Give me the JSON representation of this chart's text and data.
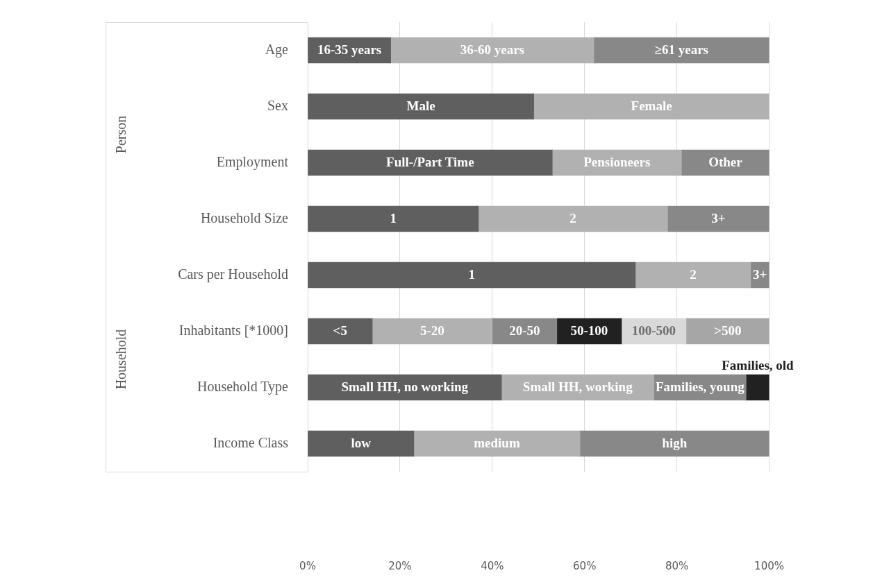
{
  "chart_data": {
    "type": "bar",
    "orientation": "horizontal",
    "stacked": true,
    "grid": "x",
    "legend": false,
    "categories": [
      "Age",
      "Sex",
      "Employment",
      "Household Size",
      "Cars per Household",
      "Inhabitants [*1000]",
      "Household Type",
      "Income Class"
    ],
    "xlim": [
      0,
      100
    ],
    "xticks": [
      {
        "value": 0,
        "label": "0%"
      },
      {
        "value": 20,
        "label": "20%"
      },
      {
        "value": 40,
        "label": "40%"
      },
      {
        "value": 60,
        "label": "60%"
      },
      {
        "value": 80,
        "label": "80%"
      },
      {
        "value": 100,
        "label": "100%"
      }
    ],
    "series": [
      {
        "name": "16-35 years",
        "color": "#5f5f5f",
        "values": [
          18,
          null,
          null,
          null,
          null,
          null,
          null,
          null
        ]
      },
      {
        "name": "36-60 years",
        "color": "#b1b1b1",
        "values": [
          44,
          null,
          null,
          null,
          null,
          null,
          null,
          null
        ]
      },
      {
        "name": "≥61 years",
        "color": "#888888",
        "values": [
          38,
          null,
          null,
          null,
          null,
          null,
          null,
          null
        ]
      },
      {
        "name": "Male",
        "color": "#5f5f5f",
        "values": [
          null,
          49,
          null,
          null,
          null,
          null,
          null,
          null
        ]
      },
      {
        "name": "Female",
        "color": "#b1b1b1",
        "values": [
          null,
          51,
          null,
          null,
          null,
          null,
          null,
          null
        ]
      },
      {
        "name": "Full-/Part Time",
        "color": "#5f5f5f",
        "values": [
          null,
          null,
          53,
          null,
          null,
          null,
          null,
          null
        ]
      },
      {
        "name": "Pensioneers",
        "color": "#b1b1b1",
        "values": [
          null,
          null,
          28,
          null,
          null,
          null,
          null,
          null
        ]
      },
      {
        "name": "Other",
        "color": "#888888",
        "values": [
          null,
          null,
          19,
          null,
          null,
          null,
          null,
          null
        ]
      },
      {
        "name": "1",
        "color": "#5f5f5f",
        "values": [
          null,
          null,
          null,
          37,
          null,
          null,
          null,
          null
        ]
      },
      {
        "name": "2",
        "color": "#b1b1b1",
        "values": [
          null,
          null,
          null,
          41,
          null,
          null,
          null,
          null
        ]
      },
      {
        "name": "3+",
        "color": "#888888",
        "values": [
          null,
          null,
          null,
          22,
          null,
          null,
          null,
          null
        ]
      },
      {
        "name": "1",
        "color": "#5f5f5f",
        "values": [
          null,
          null,
          null,
          null,
          71,
          null,
          null,
          null
        ]
      },
      {
        "name": "2",
        "color": "#b1b1b1",
        "values": [
          null,
          null,
          null,
          null,
          25,
          null,
          null,
          null
        ]
      },
      {
        "name": "3+",
        "color": "#888888",
        "values": [
          null,
          null,
          null,
          null,
          4,
          null,
          null,
          null
        ]
      },
      {
        "name": "<5",
        "color": "#5f5f5f",
        "values": [
          null,
          null,
          null,
          null,
          null,
          14,
          null,
          null
        ]
      },
      {
        "name": "5-20",
        "color": "#b1b1b1",
        "values": [
          null,
          null,
          null,
          null,
          null,
          26,
          null,
          null
        ]
      },
      {
        "name": "20-50",
        "color": "#888888",
        "values": [
          null,
          null,
          null,
          null,
          null,
          14,
          null,
          null
        ]
      },
      {
        "name": "50-100",
        "color": "#212121",
        "values": [
          null,
          null,
          null,
          null,
          null,
          14,
          null,
          null
        ]
      },
      {
        "name": "100-500",
        "color": "#d9d9d9",
        "values": [
          null,
          null,
          null,
          null,
          null,
          14,
          null,
          null
        ]
      },
      {
        "name": ">500",
        "color": "#a6a6a6",
        "values": [
          null,
          null,
          null,
          null,
          null,
          18,
          null,
          null
        ]
      },
      {
        "name": "Small HH, no working",
        "color": "#5f5f5f",
        "values": [
          null,
          null,
          null,
          null,
          null,
          null,
          42,
          null
        ]
      },
      {
        "name": "Small HH, working",
        "color": "#b1b1b1",
        "values": [
          null,
          null,
          null,
          null,
          null,
          null,
          33,
          null
        ]
      },
      {
        "name": "Families, young",
        "color": "#888888",
        "values": [
          null,
          null,
          null,
          null,
          null,
          null,
          20,
          null
        ]
      },
      {
        "name": "Families, old",
        "color": "#212121",
        "values": [
          null,
          null,
          null,
          null,
          null,
          null,
          5,
          null
        ]
      },
      {
        "name": "low",
        "color": "#5f5f5f",
        "values": [
          null,
          null,
          null,
          null,
          null,
          null,
          null,
          23
        ]
      },
      {
        "name": "medium",
        "color": "#b1b1b1",
        "values": [
          null,
          null,
          null,
          null,
          null,
          null,
          null,
          36
        ]
      },
      {
        "name": "high",
        "color": "#888888",
        "values": [
          null,
          null,
          null,
          null,
          null,
          null,
          null,
          41
        ]
      }
    ],
    "annotations": [
      "Person",
      "Household"
    ]
  }
}
